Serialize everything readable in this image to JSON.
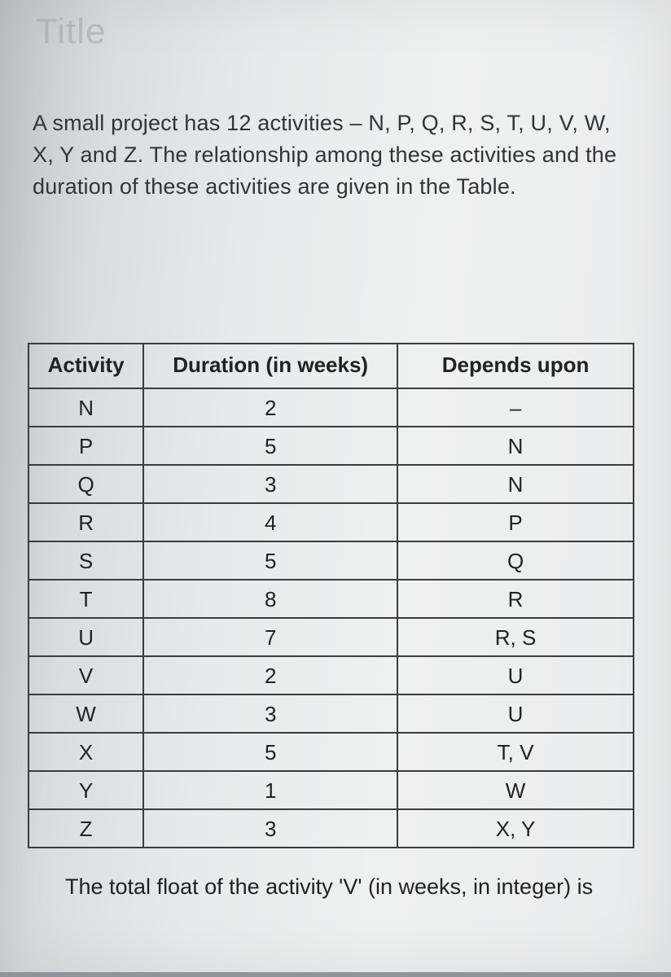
{
  "title_watermark": "Title",
  "intro_text": "A small project has 12 activities – N, P, Q, R, S, T, U, V, W, X, Y and Z. The relationship among these activities and the duration of these activities are given in the Table.",
  "table": {
    "columns": [
      "Activity",
      "Duration (in weeks)",
      "Depends upon"
    ],
    "rows": [
      [
        "N",
        "2",
        "–"
      ],
      [
        "P",
        "5",
        "N"
      ],
      [
        "Q",
        "3",
        "N"
      ],
      [
        "R",
        "4",
        "P"
      ],
      [
        "S",
        "5",
        "Q"
      ],
      [
        "T",
        "8",
        "R"
      ],
      [
        "U",
        "7",
        "R, S"
      ],
      [
        "V",
        "2",
        "U"
      ],
      [
        "W",
        "3",
        "U"
      ],
      [
        "X",
        "5",
        "T, V"
      ],
      [
        "Y",
        "1",
        "W"
      ],
      [
        "Z",
        "3",
        "X, Y"
      ]
    ]
  },
  "question_text": "The total float of the activity 'V' (in weeks, in integer) is"
}
